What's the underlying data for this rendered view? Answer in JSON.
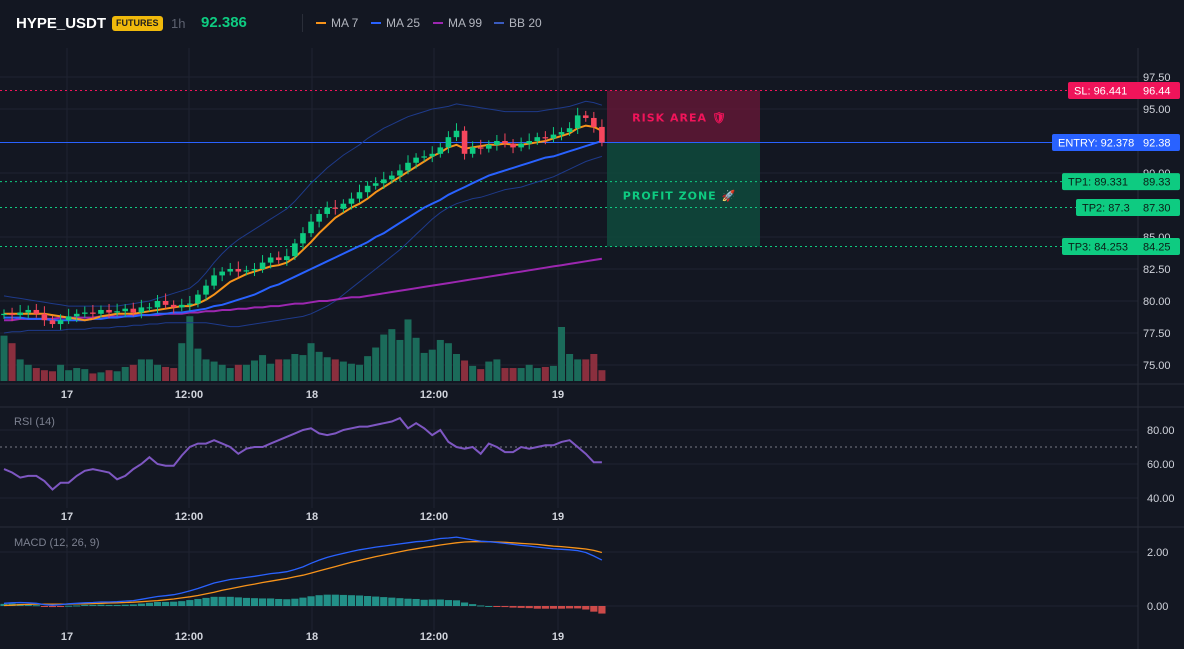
{
  "header": {
    "symbol": "HYPE_USDT",
    "badge": "FUTURES",
    "timeframe": "1h",
    "price": "92.386"
  },
  "legend": [
    {
      "label": "MA 7",
      "color": "#f7931a"
    },
    {
      "label": "MA 25",
      "color": "#2962ff"
    },
    {
      "label": "MA 99",
      "color": "#9c27b0"
    },
    {
      "label": "BB 20",
      "color": "#1e3a8a"
    }
  ],
  "colors": {
    "up": "#0ecb81",
    "down": "#f6465d",
    "background": "#131722",
    "grid": "#1f2331",
    "sl": "#f0145a",
    "entry": "#2962ff",
    "tp": "#0ecb81"
  },
  "chart_data": [
    {
      "type": "candlestick",
      "pane": "price",
      "ylim": [
        73.5,
        98.5
      ],
      "y_ticks": [
        "97.50",
        "95.00",
        "90.00",
        "85.00",
        "82.50",
        "80.00",
        "77.50",
        "75.00"
      ],
      "x_ticks": [
        "17",
        "12:00",
        "18",
        "12:00",
        "19"
      ],
      "close": [
        79.0,
        78.9,
        79.1,
        79.3,
        79.0,
        78.5,
        78.2,
        78.5,
        78.8,
        79.0,
        79.1,
        79.0,
        79.3,
        79.1,
        79.2,
        79.4,
        79.1,
        79.5,
        79.5,
        80.0,
        79.7,
        79.5,
        79.7,
        79.8,
        80.5,
        81.2,
        82.0,
        82.3,
        82.5,
        82.3,
        82.4,
        82.5,
        83.0,
        83.4,
        83.2,
        83.5,
        84.5,
        85.3,
        86.2,
        86.8,
        87.3,
        87.2,
        87.6,
        88.0,
        88.5,
        89.0,
        89.2,
        89.5,
        89.8,
        90.2,
        90.8,
        91.2,
        91.3,
        91.5,
        92.0,
        92.8,
        93.3,
        91.5,
        92.0,
        91.9,
        92.2,
        92.5,
        92.3,
        92.0,
        92.3,
        92.5,
        92.8,
        92.7,
        93.0,
        93.2,
        93.5,
        94.5,
        94.3,
        93.6,
        92.386
      ],
      "volume": [
        4.2,
        3.5,
        2.0,
        1.5,
        1.2,
        1.0,
        0.9,
        1.5,
        1.0,
        1.2,
        1.1,
        0.7,
        0.8,
        1.0,
        0.9,
        1.3,
        1.5,
        2.0,
        2.0,
        1.5,
        1.3,
        1.2,
        3.5,
        6.0,
        3.0,
        2.0,
        1.8,
        1.5,
        1.2,
        1.5,
        1.5,
        1.9,
        2.4,
        1.6,
        2.0,
        2.0,
        2.5,
        2.4,
        3.5,
        2.7,
        2.2,
        2.0,
        1.8,
        1.6,
        1.5,
        2.3,
        3.1,
        4.3,
        4.8,
        3.8,
        5.7,
        4.0,
        2.6,
        2.9,
        3.8,
        3.5,
        2.5,
        1.9,
        1.4,
        1.1,
        1.8,
        2.0,
        1.2,
        1.2,
        1.2,
        1.5,
        1.2,
        1.3,
        1.4,
        5.0,
        2.5,
        2.0,
        2.0,
        2.5,
        1.0
      ],
      "ma7": [
        79.0,
        79.0,
        79.0,
        79.0,
        79.0,
        79.0,
        78.9,
        78.8,
        78.7,
        78.6,
        78.5,
        78.6,
        78.8,
        78.9,
        79.0,
        79.0,
        79.0,
        79.1,
        79.2,
        79.3,
        79.4,
        79.5,
        79.6,
        79.6,
        79.8,
        80.1,
        80.5,
        81.0,
        81.5,
        81.8,
        82.1,
        82.3,
        82.5,
        82.7,
        82.8,
        83.0,
        83.4,
        84.0,
        84.6,
        85.3,
        85.9,
        86.5,
        86.9,
        87.3,
        87.6,
        88.0,
        88.5,
        88.9,
        89.3,
        89.7,
        90.1,
        90.5,
        90.9,
        91.3,
        91.6,
        92.0,
        92.2,
        91.9,
        92.0,
        92.1,
        92.2,
        92.2,
        92.3,
        92.2,
        92.2,
        92.3,
        92.4,
        92.5,
        92.7,
        92.9,
        93.1,
        93.5,
        93.7,
        93.6,
        93.3
      ],
      "ma25": [
        78.7,
        78.7,
        78.7,
        78.6,
        78.6,
        78.6,
        78.5,
        78.5,
        78.5,
        78.5,
        78.5,
        78.6,
        78.6,
        78.7,
        78.7,
        78.8,
        78.8,
        78.9,
        78.9,
        79.0,
        79.0,
        79.1,
        79.1,
        79.2,
        79.3,
        79.4,
        79.6,
        79.7,
        79.9,
        80.1,
        80.3,
        80.5,
        80.8,
        81.1,
        81.3,
        81.6,
        81.9,
        82.2,
        82.5,
        82.8,
        83.1,
        83.4,
        83.7,
        84.0,
        84.3,
        84.6,
        85.0,
        85.3,
        85.7,
        86.1,
        86.5,
        86.9,
        87.3,
        87.6,
        87.9,
        88.3,
        88.6,
        88.9,
        89.2,
        89.5,
        89.8,
        90.0,
        90.2,
        90.4,
        90.6,
        90.8,
        91.0,
        91.2,
        91.3,
        91.5,
        91.7,
        91.9,
        92.1,
        92.3,
        92.5
      ],
      "ma99": [
        78.5,
        78.5,
        78.6,
        78.6,
        78.6,
        78.6,
        78.6,
        78.7,
        78.7,
        78.7,
        78.7,
        78.7,
        78.8,
        78.8,
        78.8,
        78.8,
        78.9,
        78.9,
        78.9,
        78.9,
        79.0,
        79.0,
        79.0,
        79.1,
        79.1,
        79.2,
        79.2,
        79.3,
        79.3,
        79.4,
        79.4,
        79.5,
        79.5,
        79.6,
        79.6,
        79.7,
        79.8,
        79.8,
        79.9,
        80.0,
        80.0,
        80.1,
        80.2,
        80.3,
        80.3,
        80.4,
        80.5,
        80.6,
        80.7,
        80.8,
        80.9,
        81.0,
        81.1,
        81.2,
        81.3,
        81.4,
        81.5,
        81.6,
        81.7,
        81.8,
        81.9,
        82.0,
        82.1,
        82.2,
        82.3,
        82.4,
        82.5,
        82.6,
        82.7,
        82.8,
        82.9,
        83.0,
        83.1,
        83.2,
        83.3
      ],
      "bb_upper": [
        80.4,
        80.3,
        80.2,
        80.1,
        80.0,
        79.9,
        79.8,
        79.7,
        79.6,
        79.6,
        79.6,
        79.6,
        79.6,
        79.6,
        79.6,
        79.7,
        79.8,
        79.9,
        80.0,
        80.2,
        80.4,
        80.6,
        80.8,
        81.0,
        81.5,
        82.2,
        83.0,
        83.7,
        84.3,
        84.8,
        85.2,
        85.6,
        86.0,
        86.4,
        86.8,
        87.2,
        87.8,
        88.5,
        89.2,
        89.8,
        90.4,
        90.9,
        91.4,
        91.8,
        92.2,
        92.7,
        93.1,
        93.5,
        93.8,
        94.1,
        94.4,
        94.6,
        94.8,
        95.0,
        95.1,
        95.2,
        95.4,
        95.3,
        95.2,
        95.1,
        95.0,
        94.9,
        94.8,
        94.8,
        94.8,
        94.8,
        94.8,
        94.9,
        95.0,
        95.1,
        95.2,
        95.4,
        95.6,
        95.5,
        95.3
      ],
      "bb_lower": [
        77.5,
        77.6,
        77.6,
        77.7,
        77.7,
        77.7,
        77.7,
        77.7,
        77.8,
        77.8,
        77.8,
        77.9,
        77.9,
        77.9,
        78.0,
        78.0,
        78.1,
        78.1,
        78.2,
        78.2,
        78.3,
        78.3,
        78.3,
        78.3,
        78.3,
        78.3,
        78.2,
        78.1,
        78.0,
        78.0,
        78.1,
        78.2,
        78.3,
        78.4,
        78.5,
        78.6,
        78.7,
        78.8,
        79.0,
        79.3,
        79.6,
        80.0,
        80.5,
        81.0,
        81.5,
        82.0,
        82.5,
        83.0,
        83.5,
        84.0,
        84.6,
        85.2,
        85.8,
        86.4,
        86.9,
        87.3,
        87.6,
        87.8,
        88.0,
        88.1,
        88.3,
        88.5,
        88.7,
        88.8,
        88.9,
        89.1,
        89.3,
        89.5,
        89.7,
        90.0,
        90.3,
        90.6,
        90.9,
        91.1,
        91.3
      ],
      "levels": [
        {
          "name": "SL",
          "tag": "SL: 96.441",
          "axis": "96.44",
          "value": 96.441
        },
        {
          "name": "ENTRY",
          "tag": "ENTRY: 92.378",
          "axis": "92.38",
          "value": 92.378
        },
        {
          "name": "TP1",
          "tag": "TP1: 89.331",
          "axis": "89.33",
          "value": 89.331
        },
        {
          "name": "TP2",
          "tag": "TP2: 87.3",
          "axis": "87.30",
          "value": 87.3
        },
        {
          "name": "TP3",
          "tag": "TP3: 84.253",
          "axis": "84.25",
          "value": 84.253
        }
      ],
      "risk_label": "RISK AREA 🛡",
      "profit_label": "PROFIT ZONE 🚀"
    },
    {
      "type": "line",
      "pane": "rsi",
      "title": "RSI (14)",
      "ylim": [
        37,
        88
      ],
      "y_ticks": [
        "80.00",
        "60.00",
        "40.00"
      ],
      "reference_line": 70,
      "x_ticks": [
        "17",
        "12:00",
        "18",
        "12:00",
        "19"
      ],
      "values": [
        57,
        55,
        52,
        53,
        53,
        50,
        45,
        49,
        49,
        53,
        56,
        57,
        56,
        55,
        51,
        53,
        57,
        60,
        64,
        60,
        59,
        59,
        65,
        70,
        72,
        72,
        74,
        72,
        70,
        66,
        69,
        70,
        70,
        72,
        74,
        76,
        78,
        80,
        81,
        78,
        77,
        78,
        80,
        81,
        82,
        82,
        83,
        84,
        85,
        87,
        81,
        84,
        81,
        77,
        80,
        73,
        70,
        69,
        70,
        66,
        72,
        70,
        67,
        67,
        70,
        69,
        70,
        71,
        71,
        73,
        74,
        70,
        66,
        61,
        61
      ]
    },
    {
      "type": "line",
      "pane": "macd",
      "title": "MACD (12, 26, 9)",
      "ylim": [
        -0.55,
        2.9
      ],
      "y_ticks": [
        "2.00",
        "0.00"
      ],
      "x_ticks": [
        "17",
        "12:00",
        "18",
        "12:00",
        "19"
      ],
      "macd": [
        0.1,
        0.12,
        0.13,
        0.12,
        0.1,
        0.05,
        0.03,
        0.05,
        0.08,
        0.1,
        0.12,
        0.13,
        0.15,
        0.15,
        0.16,
        0.18,
        0.2,
        0.25,
        0.3,
        0.35,
        0.38,
        0.42,
        0.48,
        0.56,
        0.65,
        0.75,
        0.85,
        0.92,
        0.98,
        1.02,
        1.06,
        1.1,
        1.15,
        1.2,
        1.23,
        1.27,
        1.35,
        1.45,
        1.58,
        1.7,
        1.8,
        1.88,
        1.95,
        2.02,
        2.08,
        2.13,
        2.18,
        2.22,
        2.26,
        2.3,
        2.34,
        2.38,
        2.4,
        2.45,
        2.5,
        2.52,
        2.55,
        2.5,
        2.45,
        2.4,
        2.38,
        2.35,
        2.32,
        2.28,
        2.25,
        2.22,
        2.18,
        2.15,
        2.12,
        2.1,
        2.08,
        2.05,
        1.98,
        1.85,
        1.7
      ],
      "signal": [
        0.02,
        0.03,
        0.05,
        0.06,
        0.07,
        0.07,
        0.07,
        0.07,
        0.07,
        0.08,
        0.08,
        0.09,
        0.1,
        0.11,
        0.12,
        0.13,
        0.14,
        0.16,
        0.18,
        0.2,
        0.23,
        0.26,
        0.3,
        0.34,
        0.39,
        0.45,
        0.51,
        0.58,
        0.64,
        0.7,
        0.76,
        0.81,
        0.87,
        0.92,
        0.97,
        1.02,
        1.08,
        1.14,
        1.22,
        1.3,
        1.38,
        1.46,
        1.54,
        1.62,
        1.69,
        1.76,
        1.83,
        1.89,
        1.95,
        2.01,
        2.07,
        2.12,
        2.17,
        2.21,
        2.26,
        2.3,
        2.34,
        2.37,
        2.38,
        2.38,
        2.38,
        2.37,
        2.36,
        2.34,
        2.32,
        2.3,
        2.28,
        2.25,
        2.22,
        2.2,
        2.17,
        2.14,
        2.11,
        2.06,
        1.98
      ],
      "histogram": [
        0.08,
        0.09,
        0.08,
        0.06,
        0.03,
        -0.02,
        -0.04,
        -0.02,
        0.01,
        0.02,
        0.04,
        0.04,
        0.05,
        0.04,
        0.04,
        0.05,
        0.06,
        0.09,
        0.12,
        0.15,
        0.15,
        0.16,
        0.18,
        0.22,
        0.26,
        0.3,
        0.34,
        0.34,
        0.34,
        0.32,
        0.3,
        0.29,
        0.28,
        0.28,
        0.26,
        0.25,
        0.27,
        0.31,
        0.36,
        0.4,
        0.42,
        0.42,
        0.41,
        0.4,
        0.39,
        0.37,
        0.35,
        0.33,
        0.31,
        0.29,
        0.27,
        0.26,
        0.23,
        0.24,
        0.24,
        0.22,
        0.21,
        0.13,
        0.07,
        0.02,
        0.0,
        -0.02,
        -0.04,
        -0.06,
        -0.07,
        -0.08,
        -0.1,
        -0.1,
        -0.1,
        -0.1,
        -0.09,
        -0.09,
        -0.13,
        -0.21,
        -0.28
      ]
    }
  ]
}
